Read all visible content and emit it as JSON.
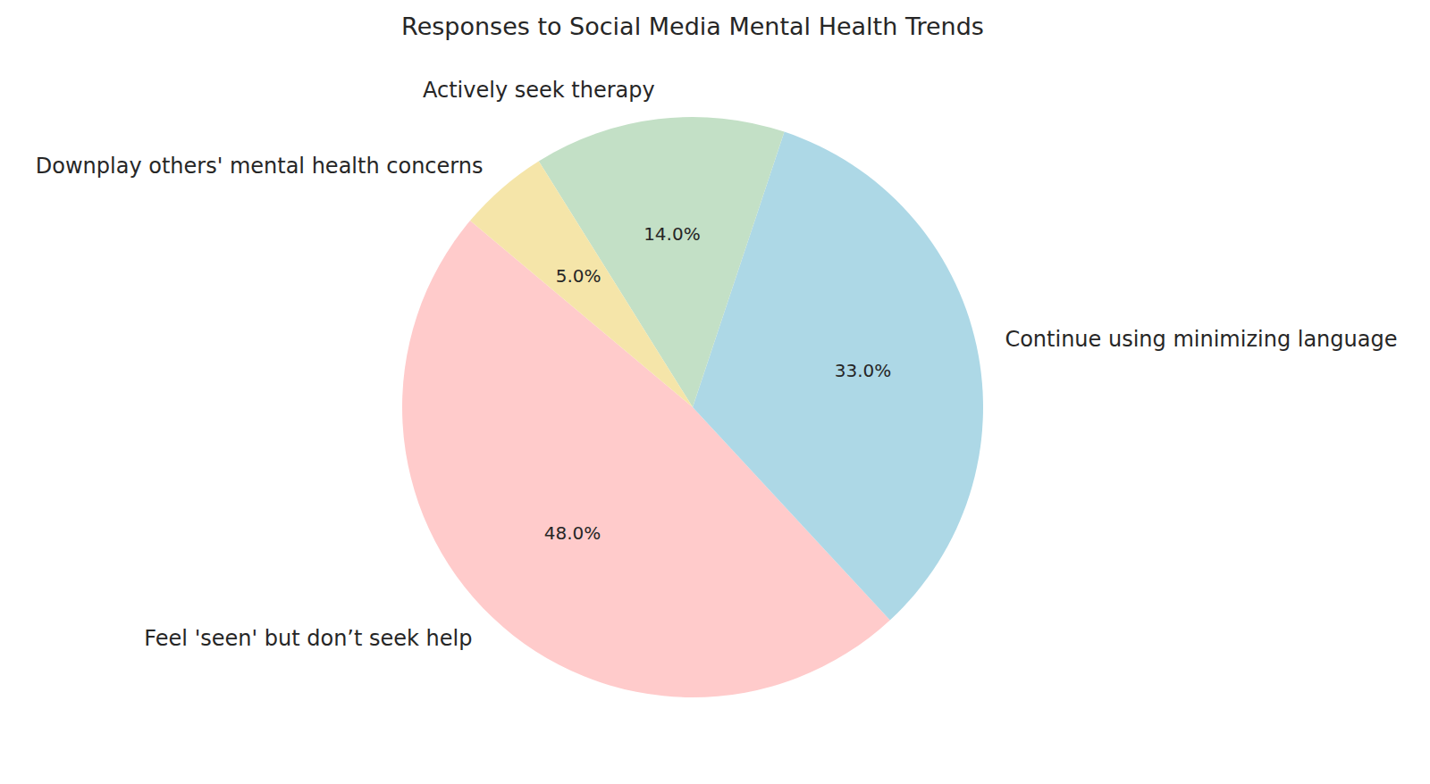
{
  "chart_data": {
    "type": "pie",
    "title": "Responses to Social Media Mental Health Trends",
    "categories": [
      "Feel 'seen' but don’t seek help",
      "Continue using minimizing language",
      "Actively seek therapy",
      "Downplay others' mental health concerns"
    ],
    "values": [
      48,
      33,
      14,
      5
    ],
    "value_labels": [
      "48.0%",
      "33.0%",
      "14.0%",
      "5.0%"
    ],
    "colors": [
      "#ffcbcb",
      "#add8e6",
      "#c3e0c6",
      "#f5e5a9"
    ],
    "data_labels": true
  }
}
